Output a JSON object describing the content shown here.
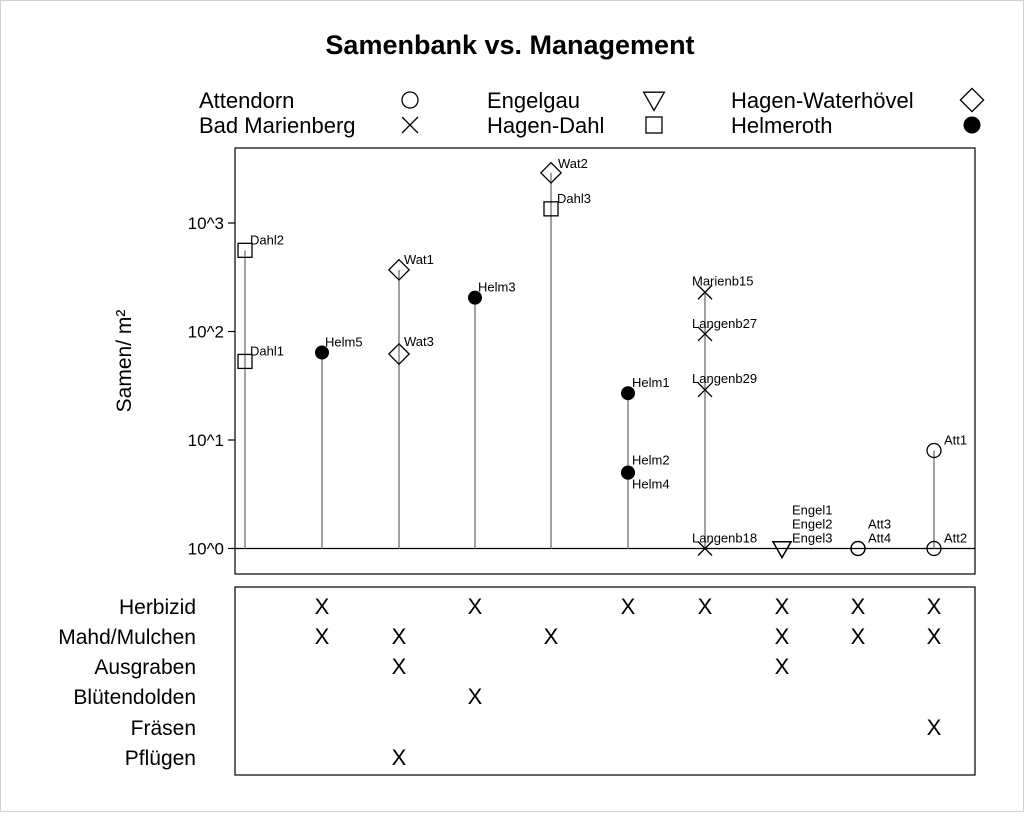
{
  "chart_data": {
    "type": "scatter",
    "title": "Samenbank vs. Management",
    "ylabel": "Samen/ m²",
    "yscale": "log",
    "ylim": [
      0.8,
      4000
    ],
    "yticks": [
      {
        "value": 1,
        "label": "10^0"
      },
      {
        "value": 10,
        "label": "10^1"
      },
      {
        "value": 100,
        "label": "10^2"
      },
      {
        "value": 1000,
        "label": "10^3"
      }
    ],
    "legend": [
      {
        "name": "Attendorn",
        "marker": "circle"
      },
      {
        "name": "Engelgau",
        "marker": "triangle-down"
      },
      {
        "name": "Hagen-Waterhövel",
        "marker": "diamond"
      },
      {
        "name": "Bad Marienberg",
        "marker": "cross"
      },
      {
        "name": "Hagen-Dahl",
        "marker": "square"
      },
      {
        "name": "Helmeroth",
        "marker": "filled-circle"
      }
    ],
    "groups": [
      {
        "points": [
          {
            "label": "Dahl2",
            "value": 560,
            "marker": "square"
          },
          {
            "label": "Dahl1",
            "value": 53,
            "marker": "square"
          }
        ]
      },
      {
        "points": [
          {
            "label": "Helm5",
            "value": 64,
            "marker": "filled-circle"
          }
        ]
      },
      {
        "points": [
          {
            "label": "Wat1",
            "value": 370,
            "marker": "diamond"
          },
          {
            "label": "Wat3",
            "value": 62,
            "marker": "diamond"
          }
        ]
      },
      {
        "points": [
          {
            "label": "Helm3",
            "value": 205,
            "marker": "filled-circle"
          }
        ]
      },
      {
        "points": [
          {
            "label": "Wat2",
            "value": 2900,
            "marker": "diamond"
          },
          {
            "label": "Dahl3",
            "value": 1350,
            "marker": "square"
          }
        ]
      },
      {
        "points": [
          {
            "label": "Helm1",
            "value": 27,
            "marker": "filled-circle"
          },
          {
            "label": "Helm2",
            "value": 5,
            "marker": "filled-circle"
          },
          {
            "label": "Helm4",
            "value": 5,
            "marker": "filled-circle"
          }
        ]
      },
      {
        "points": [
          {
            "label": "Marienb15",
            "value": 230,
            "marker": "cross"
          },
          {
            "label": "Langenb27",
            "value": 95,
            "marker": "cross"
          },
          {
            "label": "Langenb29",
            "value": 29,
            "marker": "cross"
          },
          {
            "label": "Langenb18",
            "value": 1,
            "marker": "cross"
          }
        ]
      },
      {
        "points": [
          {
            "label": "Engel1",
            "value": 1,
            "marker": "triangle-down"
          },
          {
            "label": "Engel2",
            "value": 1,
            "marker": "triangle-down"
          },
          {
            "label": "Engel3",
            "value": 1,
            "marker": "triangle-down"
          }
        ]
      },
      {
        "points": [
          {
            "label": "Att3",
            "value": 1,
            "marker": "circle"
          },
          {
            "label": "Att4",
            "value": 1,
            "marker": "circle"
          }
        ]
      },
      {
        "points": [
          {
            "label": "Att1",
            "value": 8,
            "marker": "circle"
          },
          {
            "label": "Att2",
            "value": 1,
            "marker": "circle"
          }
        ]
      }
    ],
    "management": {
      "mark": "X",
      "rows": [
        {
          "label": "Herbizid",
          "marks": [
            false,
            true,
            false,
            true,
            false,
            true,
            true,
            true,
            true,
            true
          ]
        },
        {
          "label": "Mahd/Mulchen",
          "marks": [
            false,
            true,
            true,
            false,
            true,
            false,
            false,
            true,
            true,
            true
          ]
        },
        {
          "label": "Ausgraben",
          "marks": [
            false,
            false,
            true,
            false,
            false,
            false,
            false,
            true,
            false,
            false
          ]
        },
        {
          "label": "Blütendolden",
          "marks": [
            false,
            false,
            false,
            true,
            false,
            false,
            false,
            false,
            false,
            false
          ]
        },
        {
          "label": "Fräsen",
          "marks": [
            false,
            false,
            false,
            false,
            false,
            false,
            false,
            false,
            false,
            true
          ]
        },
        {
          "label": "Pflügen",
          "marks": [
            false,
            false,
            true,
            false,
            false,
            false,
            false,
            false,
            false,
            false
          ]
        }
      ]
    }
  }
}
